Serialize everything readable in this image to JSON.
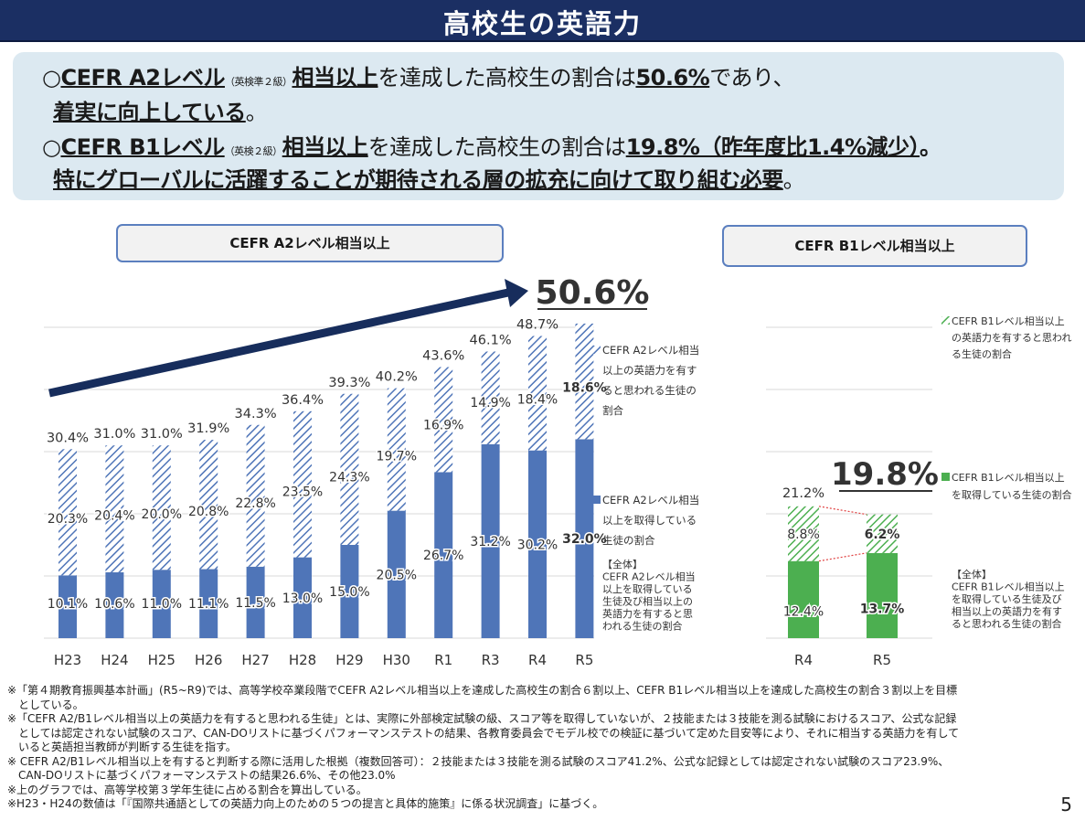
{
  "page_title": "高校生の英語力",
  "summary": {
    "line1": {
      "bullet": "○",
      "label": "CEFR A2レベル",
      "small": "（英検準２級）",
      "phrase": "相当以上",
      "mid": "を達成した高校生の割合は",
      "value": "50.6%",
      "tail": "であり、"
    },
    "line2": {
      "text": "着実に向上している",
      "tail": "。"
    },
    "line3": {
      "bullet": "○",
      "label": "CEFR B1レベル",
      "small": "（英検２級）",
      "phrase": "相当以上",
      "mid": "を達成した高校生の割合は",
      "value": "19.8%（昨年度比1.4%減少）",
      "tail": "。"
    },
    "line4": {
      "text": "特にグローバルに活躍することが期待される層の拡充に向けて取り組む必要",
      "tail": "。"
    }
  },
  "chart_data": [
    {
      "type": "bar",
      "stacked": true,
      "title": "CEFR A2レベル相当以上",
      "categories": [
        "H23",
        "H24",
        "H25",
        "H26",
        "H27",
        "H28",
        "H29",
        "H30",
        "R1",
        "R3",
        "R4",
        "R5"
      ],
      "series": [
        {
          "name": "CEFR A2レベル相当以上を取得している生徒の割合",
          "values": [
            10.1,
            10.6,
            11.0,
            11.1,
            11.5,
            13.0,
            15.0,
            20.5,
            26.7,
            31.2,
            30.2,
            32.0
          ],
          "color": "#4f75b8"
        },
        {
          "name": "CEFR A2レベル相当以上の英語力を有すると思われる生徒の割合",
          "values": [
            20.3,
            20.4,
            20.0,
            20.8,
            22.8,
            23.5,
            24.3,
            19.7,
            16.9,
            14.9,
            18.4,
            18.6
          ],
          "color": "#4f75b8",
          "pattern": "hatched"
        }
      ],
      "totals": [
        30.4,
        31.0,
        31.0,
        31.9,
        34.3,
        36.4,
        39.3,
        40.2,
        43.6,
        46.1,
        48.7,
        50.6
      ],
      "value_labels": {
        "lower": [
          "10.1%",
          "10.6%",
          "11.0%",
          "11.1%",
          "11.5%",
          "13.0%",
          "15.0%",
          "20.5%",
          "26.7%",
          "31.2%",
          "30.2%",
          "32.0%"
        ],
        "upper": [
          "20.3%",
          "20.4%",
          "20.0%",
          "20.8%",
          "22.8%",
          "23.5%",
          "24.3%",
          "19.7%",
          "16.9%",
          "14.9%",
          "18.4%",
          "18.6%"
        ],
        "total": [
          "30.4%",
          "31.0%",
          "31.0%",
          "31.9%",
          "34.3%",
          "36.4%",
          "39.3%",
          "40.2%",
          "43.6%",
          "46.1%",
          "48.7%"
        ]
      },
      "highlight": "50.6%",
      "legend": {
        "hatched": [
          "CEFR A2レベル相当",
          "以上の英語力を有す",
          "ると思われる生徒の",
          "割合"
        ],
        "solid": [
          "CEFR A2レベル相当",
          "以上を取得している",
          "生徒の割合"
        ],
        "total": [
          "【全体】",
          "CEFR A2レベル相当",
          "以上を取得している",
          "生徒及び相当以上の",
          "英語力を有すると思",
          "われる生徒の割合"
        ]
      },
      "legend_position": "right",
      "ylim": [
        0,
        60
      ]
    },
    {
      "type": "bar",
      "stacked": true,
      "title": "CEFR B1レベル相当以上",
      "categories": [
        "R4",
        "R5"
      ],
      "series": [
        {
          "name": "CEFR B1レベル相当以上を取得している生徒の割合",
          "values": [
            12.4,
            13.7
          ],
          "color": "#4caf50"
        },
        {
          "name": "CEFR B1レベル相当以上の英語力を有すると思われる生徒の割合",
          "values": [
            8.8,
            6.2
          ],
          "color": "#4caf50",
          "pattern": "hatched"
        }
      ],
      "totals": [
        21.2,
        19.8
      ],
      "value_labels": {
        "lower": [
          "12.4%",
          "13.7%"
        ],
        "upper": [
          "8.8%",
          "6.2%"
        ],
        "total": [
          "21.2%"
        ]
      },
      "highlight": "19.8%",
      "legend": {
        "hatched": [
          "CEFR B1レベル相当以上",
          "の英語力を有すると思われ",
          "る生徒の割合"
        ],
        "solid": [
          "CEFR B1レベル相当以上",
          "を取得している生徒の割合"
        ],
        "total": [
          "【全体】",
          "CEFR B1レベル相当以上",
          "を取得している生徒及び",
          "相当以上の英語力を有す",
          "ると思われる生徒の割合"
        ]
      },
      "legend_position": "right",
      "ylim": [
        0,
        60
      ]
    }
  ],
  "footnotes": [
    "※「第４期教育振興基本計画」(R5~R9)では、高等学校卒業段階でCEFR A2レベル相当以上を達成した高校生の割合６割以上、CEFR B1レベル相当以上を達成した高校生の割合３割以上を目標",
    "　としている。",
    "※「CEFR A2/B1レベル相当以上の英語力を有すると思われる生徒」とは、実際に外部検定試験の級、スコア等を取得していないが、２技能または３技能を測る試験におけるスコア、公式な記録",
    "　としては認定されない試験のスコア、CAN-DOリストに基づくパフォーマンステストの結果、各教育委員会でモデル校での検証に基づいて定めた目安等により、それに相当する英語力を有して",
    "　いると英語担当教師が判断する生徒を指す。",
    "※ CEFR A2/B1レベル相当以上を有すると判断する際に活用した根拠（複数回答可）：２技能または３技能を測る試験のスコア41.2%、公式な記録としては認定されない試験のスコア23.9%、",
    "　CAN-DOリストに基づくパフォーマンステストの結果26.6%、その他23.0%",
    "※上のグラフでは、高等学校第３学年生徒に占める割合を算出している。",
    "※H23・H24の数値は「『国際共通語としての英語力向上のための５つの提言と具体的施策』に係る状況調査」に基づく。"
  ],
  "page_number": "5"
}
